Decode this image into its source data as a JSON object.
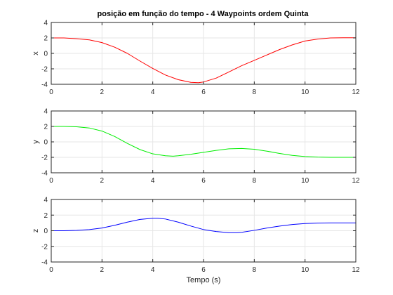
{
  "figure": {
    "title": "posição em função do tempo - 4 Waypoints ordem Quinta"
  },
  "chart_data": [
    {
      "type": "line",
      "title": "posição em função do tempo - 4 Waypoints ordem Quinta",
      "xlabel": "",
      "ylabel": "x",
      "xlim": [
        0,
        12
      ],
      "ylim": [
        -4,
        4
      ],
      "xticks": [
        0,
        2,
        4,
        6,
        8,
        10,
        12
      ],
      "yticks": [
        4,
        2,
        0,
        -2,
        -4
      ],
      "grid": true,
      "series": [
        {
          "color": "#ff0000",
          "x": [
            0,
            0.5,
            1,
            1.5,
            2,
            2.5,
            3,
            3.5,
            4,
            4.5,
            5,
            5.5,
            5.8,
            6,
            6.5,
            7,
            7.5,
            8,
            8.5,
            9,
            9.5,
            10,
            10.5,
            11,
            11.5,
            12
          ],
          "y": [
            2.0,
            2.0,
            1.9,
            1.75,
            1.4,
            0.8,
            0.0,
            -1.0,
            -1.95,
            -2.8,
            -3.4,
            -3.75,
            -3.8,
            -3.7,
            -3.2,
            -2.4,
            -1.6,
            -0.9,
            -0.2,
            0.5,
            1.1,
            1.6,
            1.85,
            2.0,
            2.02,
            2.02
          ]
        }
      ]
    },
    {
      "type": "line",
      "xlabel": "",
      "ylabel": "y",
      "xlim": [
        0,
        12
      ],
      "ylim": [
        -4,
        4
      ],
      "xticks": [
        0,
        2,
        4,
        6,
        8,
        10,
        12
      ],
      "yticks": [
        4,
        2,
        0,
        -2,
        -4
      ],
      "grid": true,
      "series": [
        {
          "color": "#00ee00",
          "x": [
            0,
            0.5,
            1,
            1.5,
            2,
            2.5,
            3,
            3.5,
            4,
            4.5,
            4.8,
            5,
            5.5,
            6,
            6.5,
            7,
            7.5,
            8,
            8.5,
            9,
            9.5,
            10,
            10.5,
            11,
            11.5,
            12
          ],
          "y": [
            2.0,
            2.0,
            1.95,
            1.8,
            1.4,
            0.7,
            -0.2,
            -1.0,
            -1.55,
            -1.8,
            -1.85,
            -1.8,
            -1.6,
            -1.35,
            -1.1,
            -0.9,
            -0.85,
            -0.95,
            -1.2,
            -1.5,
            -1.75,
            -1.9,
            -1.97,
            -2.0,
            -2.0,
            -2.0
          ]
        }
      ]
    },
    {
      "type": "line",
      "xlabel": "Tempo (s)",
      "ylabel": "z",
      "xlim": [
        0,
        12
      ],
      "ylim": [
        -4,
        4
      ],
      "xticks": [
        0,
        2,
        4,
        6,
        8,
        10,
        12
      ],
      "yticks": [
        4,
        2,
        0,
        -2,
        -4
      ],
      "grid": true,
      "series": [
        {
          "color": "#0000ff",
          "x": [
            0,
            0.5,
            1,
            1.5,
            2,
            2.5,
            3,
            3.5,
            4,
            4.2,
            4.5,
            5,
            5.5,
            6,
            6.5,
            7,
            7.3,
            7.5,
            8,
            8.5,
            9,
            9.5,
            10,
            10.5,
            11,
            11.5,
            12
          ],
          "y": [
            0.0,
            0.0,
            0.05,
            0.15,
            0.35,
            0.7,
            1.1,
            1.45,
            1.6,
            1.6,
            1.5,
            1.1,
            0.6,
            0.15,
            -0.1,
            -0.25,
            -0.25,
            -0.2,
            0.05,
            0.35,
            0.6,
            0.8,
            0.92,
            0.98,
            1.0,
            1.0,
            1.0
          ]
        }
      ]
    }
  ]
}
